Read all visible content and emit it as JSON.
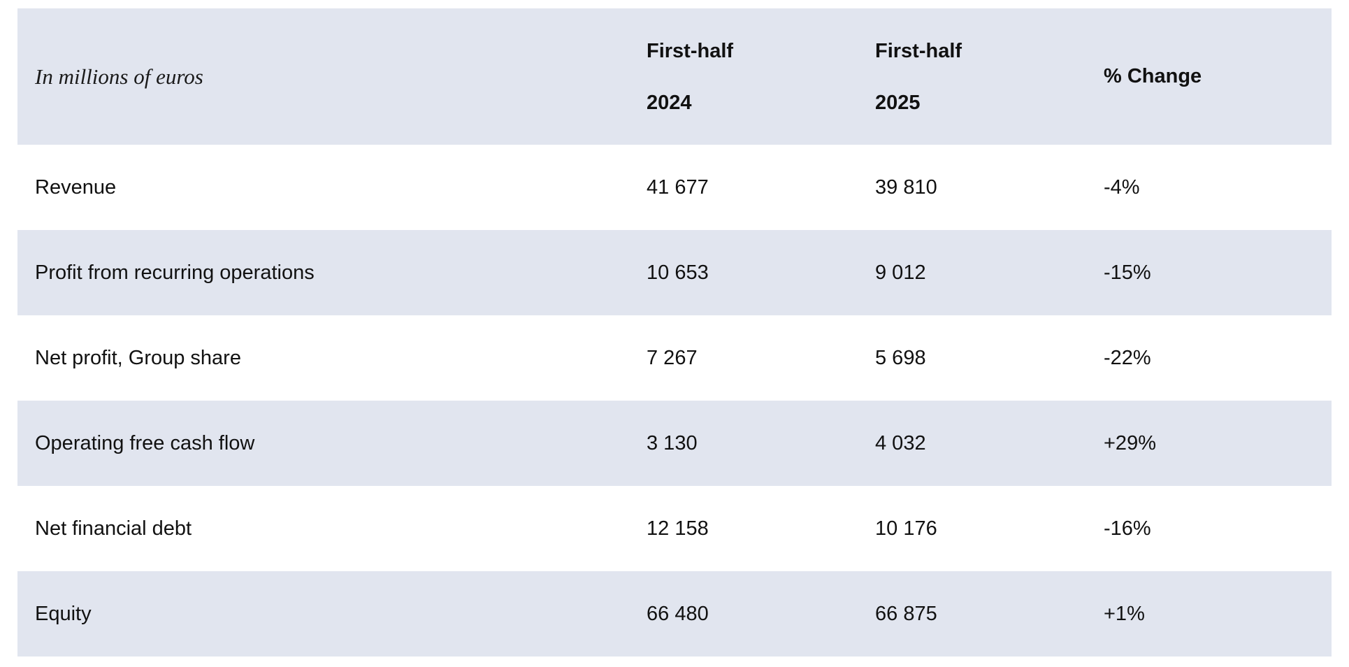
{
  "table": {
    "header": {
      "unit_label": "In millions of euros",
      "col1": {
        "line1": "First-half",
        "line2": "2024"
      },
      "col2": {
        "line1": "First-half",
        "line2": "2025"
      },
      "col3": "% Change"
    },
    "rows": [
      {
        "label": "Revenue",
        "h1_2024": "41 677",
        "h1_2025": "39 810",
        "change": "-4%"
      },
      {
        "label": "Profit from recurring operations",
        "h1_2024": "10 653",
        "h1_2025": "9 012",
        "change": "-15%"
      },
      {
        "label": "Net profit, Group share",
        "h1_2024": "7 267",
        "h1_2025": "5 698",
        "change": "-22%"
      },
      {
        "label": "Operating free cash flow",
        "h1_2024": "3 130",
        "h1_2025": "4 032",
        "change": "+29%"
      },
      {
        "label": "Net financial debt",
        "h1_2024": "12 158",
        "h1_2025": "10 176",
        "change": "-16%"
      },
      {
        "label": "Equity",
        "h1_2024": "66 480",
        "h1_2025": "66 875",
        "change": "+1%"
      }
    ]
  }
}
